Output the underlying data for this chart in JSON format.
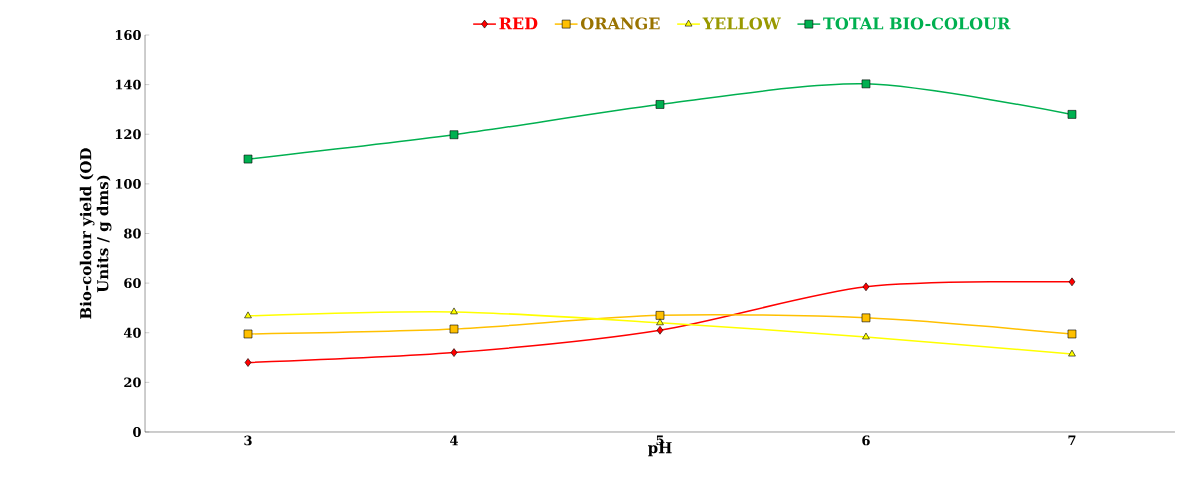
{
  "chart_data": {
    "type": "line",
    "xlabel": "pH",
    "ylabel": "Bio-colour yield (OD Units / g dms)",
    "categories": [
      "3",
      "4",
      "5",
      "6",
      "7"
    ],
    "series": [
      {
        "name": "RED",
        "color": "#ff0000",
        "marker": "diamond",
        "values": [
          28,
          32,
          41,
          58.5,
          60.5
        ]
      },
      {
        "name": "ORANGE",
        "color": "#ffc000",
        "marker": "square",
        "values": [
          39.5,
          41.5,
          47,
          46,
          39.5
        ]
      },
      {
        "name": "YELLOW",
        "color": "#ffff00",
        "marker": "triangle",
        "values": [
          46.8,
          48.4,
          44,
          38.3,
          31.4
        ]
      },
      {
        "name": "TOTAL BIO-COLOUR",
        "color": "#00b050",
        "marker": "square",
        "values": [
          110,
          119.8,
          132,
          140.3,
          128
        ]
      }
    ],
    "ylim": [
      0,
      160
    ],
    "yticks": [
      0,
      20,
      40,
      60,
      80,
      100,
      120,
      140,
      160
    ],
    "grid": false,
    "legend": "top"
  }
}
